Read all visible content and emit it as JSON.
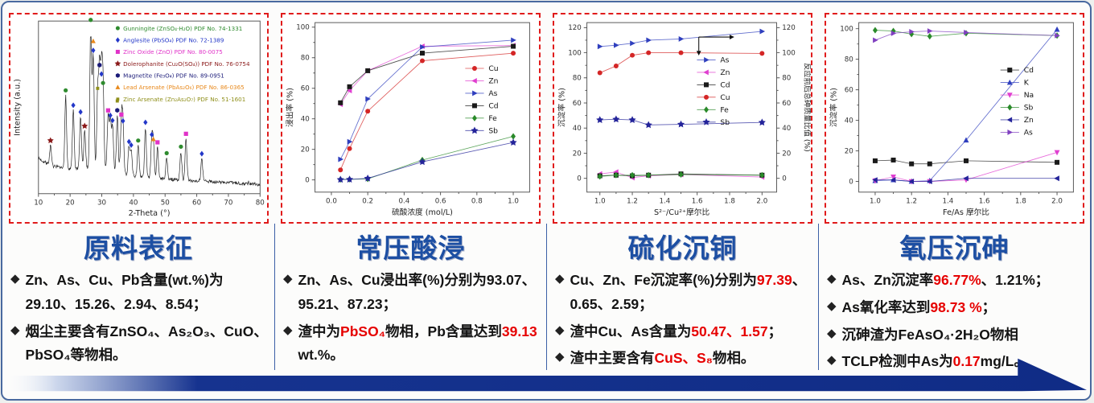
{
  "accent": {
    "title_blue": "#1d4fa3",
    "highlight_red": "#e60000",
    "panel_border_red": "#e01b1b",
    "frame_border_blue": "#49699f",
    "divider_blue": "#3b5fa6",
    "arrow_blue": "#16338f"
  },
  "panels": [
    {
      "title": "原料表征",
      "bullets": [
        {
          "segments": [
            {
              "t": "Zn、As、Cu、Pb含量(wt.%)为29.10、15.26、2.94、8.54；"
            }
          ]
        },
        {
          "segments": [
            {
              "t": "烟尘主要含有ZnSO₄、As₂O₃、CuO、PbSO₄等物相。"
            }
          ]
        }
      ]
    },
    {
      "title": "常压酸浸",
      "bullets": [
        {
          "segments": [
            {
              "t": "Zn、As、Cu浸出率(%)分别为93.07、95.21、87.23；"
            }
          ]
        },
        {
          "segments": [
            {
              "t": "渣中为"
            },
            {
              "t": "PbSO₄",
              "red": true
            },
            {
              "t": "物相，Pb含量达到"
            },
            {
              "t": "39.13",
              "red": true
            },
            {
              "t": " wt.%。"
            }
          ]
        }
      ]
    },
    {
      "title": "硫化沉铜",
      "bullets": [
        {
          "segments": [
            {
              "t": "Cu、Zn、Fe沉淀率(%)分别为"
            },
            {
              "t": "97.39",
              "red": true
            },
            {
              "t": "、0.65、2.59；"
            }
          ]
        },
        {
          "segments": [
            {
              "t": "渣中Cu、As含量为"
            },
            {
              "t": "50.47、1.57",
              "red": true
            },
            {
              "t": "；"
            }
          ]
        },
        {
          "segments": [
            {
              "t": "渣中主要含有"
            },
            {
              "t": "CuS、S₈",
              "red": true
            },
            {
              "t": "物相。"
            }
          ]
        }
      ]
    },
    {
      "title": "氧压沉砷",
      "bullets": [
        {
          "segments": [
            {
              "t": "As、Zn沉淀率"
            },
            {
              "t": "96.77%",
              "red": true
            },
            {
              "t": "、1.21%；"
            }
          ]
        },
        {
          "segments": [
            {
              "t": "As氧化率达到"
            },
            {
              "t": "98.73 %",
              "red": true
            },
            {
              "t": "；"
            }
          ]
        },
        {
          "segments": [
            {
              "t": "沉砷渣为FeAsO₄·2H₂O物相"
            }
          ]
        },
        {
          "segments": [
            {
              "t": "TCLP检测中As为"
            },
            {
              "t": "0.17",
              "red": true
            },
            {
              "t": "mg/L。"
            }
          ]
        }
      ]
    }
  ],
  "chart_data": [
    {
      "type": "line",
      "variant": "xrd",
      "title": "",
      "xlabel": "2-Theta (°)",
      "ylabel": "Intensity (a.u.)",
      "xlim": [
        10,
        80
      ],
      "xticks": [
        10,
        20,
        30,
        40,
        50,
        60,
        70,
        80
      ],
      "grid": false,
      "legend_position": "top-right",
      "marker_colors": {
        "circle": "#2e8b2e",
        "diamond": "#2337c8",
        "square": "#e032c8",
        "star": "#8b1a1a",
        "hexagon": "#1a1a78",
        "tri-up": "#e8881a",
        "square-small": "#8f8f1a"
      },
      "legend": [
        {
          "marker": "circle",
          "color": "#2e8b2e",
          "label": "Gunningite (ZnSO₄·H₂O) PDF No. 74-1331"
        },
        {
          "marker": "diamond",
          "color": "#2337c8",
          "label": "Anglesite (PbSO₄) PDF No. 72-1389"
        },
        {
          "marker": "square",
          "color": "#e032c8",
          "label": "Zinc Oxide (ZnO) PDF No. 80-0075"
        },
        {
          "marker": "star",
          "color": "#8b1a1a",
          "label": "Dolerophanite (Cu₂O(SO₄)) PDF No. 76-0754"
        },
        {
          "marker": "hexagon",
          "color": "#1a1a78",
          "label": "Magnetite (Fe₃O₄) PDF No. 89-0951"
        },
        {
          "marker": "tri-up",
          "color": "#e8881a",
          "label": "Lead Arsenate (PbAs₂O₆) PDF No. 86-0365"
        },
        {
          "marker": "square-small",
          "color": "#8f8f1a",
          "label": "Zinc Arsenate (Zn₂As₂O₇) PDF No. 51-1601"
        }
      ],
      "peaks": [
        {
          "x": 13.8,
          "h": 0.13,
          "m": [
            "star"
          ]
        },
        {
          "x": 18.6,
          "h": 0.5,
          "m": [
            "circle"
          ]
        },
        {
          "x": 21.0,
          "h": 0.4,
          "m": [
            "diamond"
          ]
        },
        {
          "x": 23.3,
          "h": 0.35,
          "m": [
            "diamond"
          ]
        },
        {
          "x": 24.6,
          "h": 0.25,
          "m": [
            "star"
          ]
        },
        {
          "x": 26.5,
          "h": 0.97,
          "m": [
            "circle"
          ]
        },
        {
          "x": 27.3,
          "h": 0.76,
          "m": [
            "tri-up",
            "diamond"
          ]
        },
        {
          "x": 28.7,
          "h": 0.5,
          "m": [
            "square-small"
          ]
        },
        {
          "x": 29.3,
          "h": 0.66,
          "m": [
            "hexagon"
          ]
        },
        {
          "x": 29.9,
          "h": 0.6,
          "m": [
            "diamond"
          ]
        },
        {
          "x": 30.4,
          "h": 0.54,
          "m": [
            "circle"
          ]
        },
        {
          "x": 32.0,
          "h": 0.36,
          "m": [
            "square"
          ]
        },
        {
          "x": 32.7,
          "h": 0.33,
          "m": [
            "diamond"
          ]
        },
        {
          "x": 33.4,
          "h": 0.3,
          "m": [
            "diamond"
          ]
        },
        {
          "x": 34.9,
          "h": 0.38,
          "m": [
            "square-small",
            "hexagon"
          ]
        },
        {
          "x": 36.2,
          "h": 0.36,
          "m": [
            "square"
          ]
        },
        {
          "x": 36.7,
          "h": 0.32,
          "m": [
            "diamond"
          ]
        },
        {
          "x": 38.6,
          "h": 0.19,
          "m": [
            "diamond"
          ]
        },
        {
          "x": 39.3,
          "h": 0.17,
          "m": [
            "diamond"
          ]
        },
        {
          "x": 41.5,
          "h": 0.21,
          "m": [
            "circle"
          ]
        },
        {
          "x": 43.8,
          "h": 0.34,
          "m": [
            "diamond"
          ]
        },
        {
          "x": 45.8,
          "h": 0.26,
          "m": [
            "diamond"
          ]
        },
        {
          "x": 46.3,
          "h": 0.23,
          "m": [
            "tri-up"
          ]
        },
        {
          "x": 47.6,
          "h": 0.21,
          "m": [
            "square"
          ]
        },
        {
          "x": 50.5,
          "h": 0.14,
          "m": [
            "circle"
          ]
        },
        {
          "x": 55.0,
          "h": 0.19,
          "m": [
            "circle"
          ]
        },
        {
          "x": 56.6,
          "h": 0.28,
          "m": [
            "square"
          ]
        },
        {
          "x": 61.6,
          "h": 0.15,
          "m": [
            "diamond"
          ]
        }
      ]
    },
    {
      "type": "line",
      "title": "",
      "xlabel": "硫酸浓度 (mol/L)",
      "ylabel": "浸出率 (%)",
      "xlim": [
        -0.09,
        1.09
      ],
      "ylim": [
        -8,
        103
      ],
      "xticks": {
        "pos": [
          0,
          0.2,
          0.4,
          0.6,
          0.8,
          1.0
        ],
        "labels": [
          "0.0",
          "0.2",
          "0.4",
          "0.6",
          "0.8",
          "1.0"
        ]
      },
      "yticks": [
        0,
        20,
        40,
        60,
        80,
        100
      ],
      "grid": false,
      "legend_position": "right-center",
      "legend_xy": [
        0.7,
        0.27
      ],
      "x": [
        0.05,
        0.1,
        0.2,
        0.5,
        1.0
      ],
      "series": [
        {
          "name": "Cu",
          "marker": "circle",
          "color": "#d42626",
          "values": [
            6.5,
            20.5,
            45,
            78,
            83
          ]
        },
        {
          "name": "Zn",
          "marker": "tri-left",
          "color": "#e03fd0",
          "values": [
            49.5,
            58.5,
            71.5,
            87.5,
            88
          ]
        },
        {
          "name": "As",
          "marker": "tri-right",
          "color": "#2f3fbe",
          "values": [
            13.5,
            25,
            53,
            87,
            91.5
          ]
        },
        {
          "name": "Cd",
          "marker": "square",
          "color": "#1a1a1a",
          "values": [
            50.5,
            61,
            71.5,
            83,
            87.5
          ]
        },
        {
          "name": "Fe",
          "marker": "diamond",
          "color": "#2a8a2a",
          "values": [
            0.3,
            0.4,
            0.6,
            13,
            28.5
          ]
        },
        {
          "name": "Sb",
          "marker": "star",
          "color": "#24249a",
          "values": [
            0.2,
            0.3,
            1,
            11.8,
            24.5
          ]
        }
      ]
    },
    {
      "type": "line",
      "title": "",
      "xlabel": "S²⁻/Cu²⁺摩尔比",
      "ylabel": "沉淀率 (%)",
      "ylabel_right": "反应前后总砷质量比值 (%)",
      "xlim": [
        0.92,
        2.09
      ],
      "ylim": [
        -11,
        124
      ],
      "xticks": {
        "pos": [
          1.0,
          1.2,
          1.4,
          1.6,
          1.8,
          2.0
        ],
        "labels": [
          "1.0",
          "1.2",
          "1.4",
          "1.6",
          "1.8",
          "2.0"
        ]
      },
      "yticks": [
        0,
        20,
        40,
        60,
        80,
        100,
        120
      ],
      "yticks_right": [
        0,
        20,
        40,
        60,
        80,
        100,
        120
      ],
      "grid": false,
      "annotation": "axis-arrow",
      "legend_position": "right-center",
      "legend_xy": [
        0.58,
        0.22
      ],
      "x": [
        1.0,
        1.1,
        1.2,
        1.3,
        1.5,
        2.0
      ],
      "series": [
        {
          "name": "As",
          "marker": "tri-right",
          "color": "#2f3fbe",
          "axis": "right",
          "values": [
            105,
            106,
            107.5,
            110,
            111,
            117
          ]
        },
        {
          "name": "Zn",
          "marker": "tri-left",
          "color": "#e03fd0",
          "values": [
            3.5,
            5,
            0.5,
            2,
            3,
            1
          ]
        },
        {
          "name": "Cd",
          "marker": "square",
          "color": "#1a1a1a",
          "values": [
            2,
            2.5,
            2,
            2.5,
            3.5,
            2.5
          ]
        },
        {
          "name": "Cu",
          "marker": "circle",
          "color": "#d42626",
          "values": [
            84,
            89.5,
            98,
            100,
            100,
            99.5
          ]
        },
        {
          "name": "Fe",
          "marker": "diamond",
          "color": "#2a8a2a",
          "values": [
            1.5,
            2.5,
            2.5,
            2.5,
            3,
            2.5
          ]
        },
        {
          "name": "Sb",
          "marker": "star",
          "color": "#24249a",
          "values": [
            46.5,
            47,
            46.5,
            42.5,
            43,
            44.5
          ]
        }
      ]
    },
    {
      "type": "line",
      "title": "",
      "xlabel": "Fe/As 摩尔比",
      "ylabel": "沉淀率 (%)",
      "xlim": [
        0.91,
        2.09
      ],
      "ylim": [
        -7,
        104
      ],
      "xticks": {
        "pos": [
          1.0,
          1.2,
          1.4,
          1.6,
          1.8,
          2.0
        ],
        "labels": [
          "1.0",
          "1.2",
          "1.4",
          "1.6",
          "1.8",
          "2.0"
        ]
      },
      "yticks": [
        0,
        20,
        40,
        60,
        80,
        100
      ],
      "grid": false,
      "legend_position": "right-center",
      "legend_xy": [
        0.66,
        0.28
      ],
      "x": [
        1.0,
        1.1,
        1.2,
        1.3,
        1.5,
        2.0
      ],
      "series": [
        {
          "name": "Cd",
          "marker": "square",
          "color": "#1a1a1a",
          "values": [
            13.5,
            14,
            11.5,
            11.5,
            13.5,
            12.5
          ]
        },
        {
          "name": "K",
          "marker": "tri-up",
          "color": "#2f3fbe",
          "values": [
            0.5,
            1,
            0,
            0.5,
            27,
            99.5
          ]
        },
        {
          "name": "Na",
          "marker": "tri-down",
          "color": "#e03fd0",
          "values": [
            0.5,
            3,
            0,
            0,
            1,
            19
          ]
        },
        {
          "name": "Sb",
          "marker": "diamond",
          "color": "#2a8a2a",
          "values": [
            99,
            98.5,
            96.5,
            95,
            97,
            95.5
          ]
        },
        {
          "name": "Zn",
          "marker": "tri-left",
          "color": "#24249a",
          "values": [
            1,
            1,
            0,
            0,
            2,
            2
          ]
        },
        {
          "name": "As",
          "marker": "tri-right",
          "color": "#8040c0",
          "values": [
            92.5,
            97,
            98,
            98.5,
            97.5,
            95.5
          ]
        }
      ]
    }
  ]
}
